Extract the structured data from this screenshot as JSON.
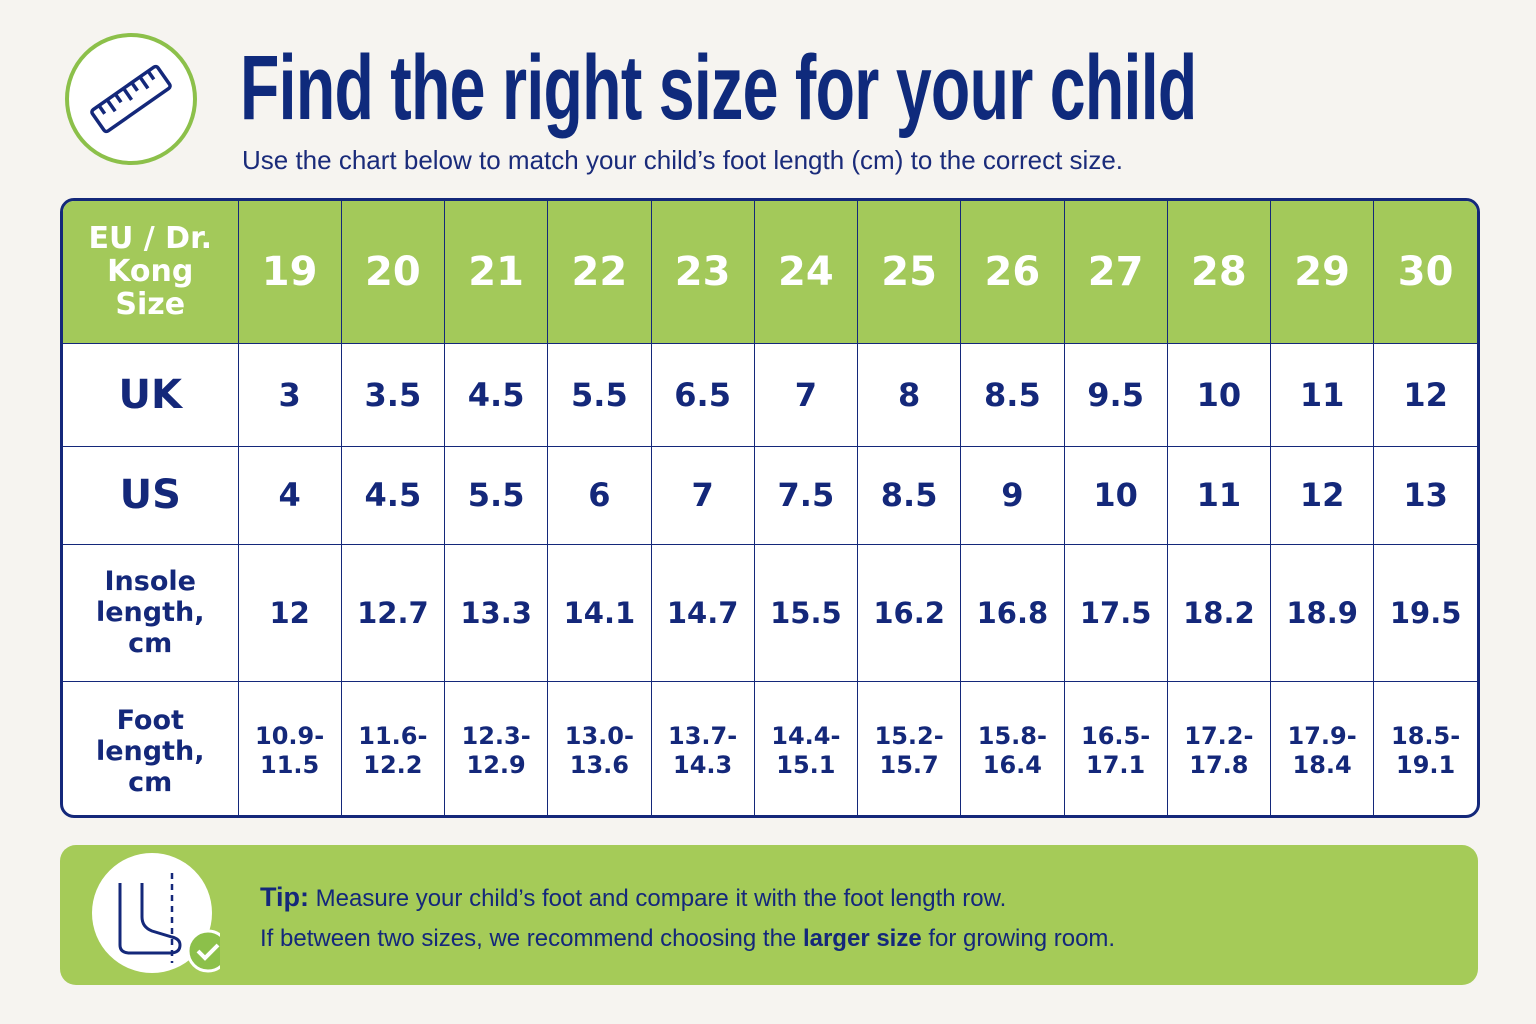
{
  "header": {
    "title": "Find the right size for your child",
    "subtitle": "Use the chart below to match your child’s foot length (cm) to the correct size."
  },
  "table": {
    "header": [
      "EU / Dr. Kong Size",
      "19",
      "20",
      "21",
      "22",
      "23",
      "24",
      "25",
      "26",
      "27",
      "28",
      "29",
      "30"
    ],
    "rows": [
      [
        "UK",
        "3",
        "3.5",
        "4.5",
        "5.5",
        "6.5",
        "7",
        "8",
        "8.5",
        "9.5",
        "10",
        "11",
        "12"
      ],
      [
        "US",
        "4",
        "4.5",
        "5.5",
        "6",
        "7",
        "7.5",
        "8.5",
        "9",
        "10",
        "11",
        "12",
        "13"
      ],
      [
        "Insole length, cm",
        "12",
        "12.7",
        "13.3",
        "14.1",
        "14.7",
        "15.5",
        "16.2",
        "16.8",
        "17.5",
        "18.2",
        "18.9",
        "19.5"
      ],
      [
        "Foot length, cm",
        "10.9-11.5",
        "11.6-12.2",
        "12.3-12.9",
        "13.0-13.6",
        "13.7-14.3",
        "14.4-15.1",
        "15.2-15.7",
        "15.8-16.4",
        "16.5-17.1",
        "17.2-17.8",
        "17.9-18.4",
        "18.5-19.1"
      ]
    ]
  },
  "tip": {
    "label": "Tip:",
    "line1": " Measure your child’s foot and compare it with the foot length row.",
    "line2_before": "If between two sizes, we recommend choosing the ",
    "line2_bold": "larger size",
    "line2_after": " for growing room."
  }
}
